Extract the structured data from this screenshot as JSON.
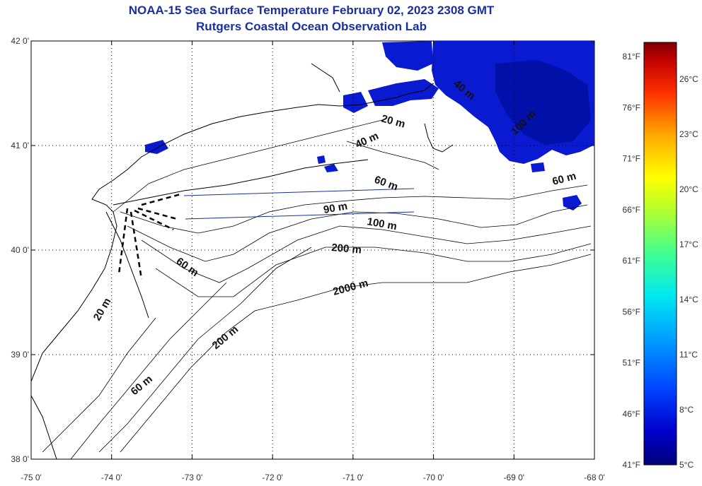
{
  "title": {
    "line1": "NOAA-15 Sea Surface Temperature February 02, 2023 2308 GMT",
    "line2": "Rutgers Coastal Ocean Observation Lab"
  },
  "map": {
    "lat_ticks": [
      "42 0'",
      "41 0'",
      "40 0'",
      "39 0'",
      "38 0'"
    ],
    "lon_ticks": [
      "-75 0'",
      "-74 0'",
      "-73 0'",
      "-72 0'",
      "-71 0'",
      "-70 0'",
      "-69 0'",
      "-68 0'"
    ],
    "lat_range": [
      38,
      42
    ],
    "lon_range": [
      -75,
      -68
    ],
    "colors": {
      "land_outline": "#000000",
      "cold_sst": "#0a1ad0",
      "cold_sst_dark": "#0010a8",
      "transect": "#1a2ea0",
      "title": "#1a2ea0"
    },
    "contour_labels": [
      "20 m",
      "40 m",
      "60 m",
      "90 m",
      "100 m",
      "200 m",
      "2000 m",
      "60 m",
      "20 m",
      "200 m",
      "60 m",
      "40 m",
      "100 m",
      "60 m"
    ]
  },
  "colorbar": {
    "fahrenheit": [
      "81°F",
      "76°F",
      "71°F",
      "66°F",
      "61°F",
      "56°F",
      "51°F",
      "46°F",
      "41°F"
    ],
    "celsius": [
      "26°C",
      "23°C",
      "20°C",
      "17°C",
      "14°C",
      "11°C",
      "8°C",
      "5°C"
    ]
  }
}
